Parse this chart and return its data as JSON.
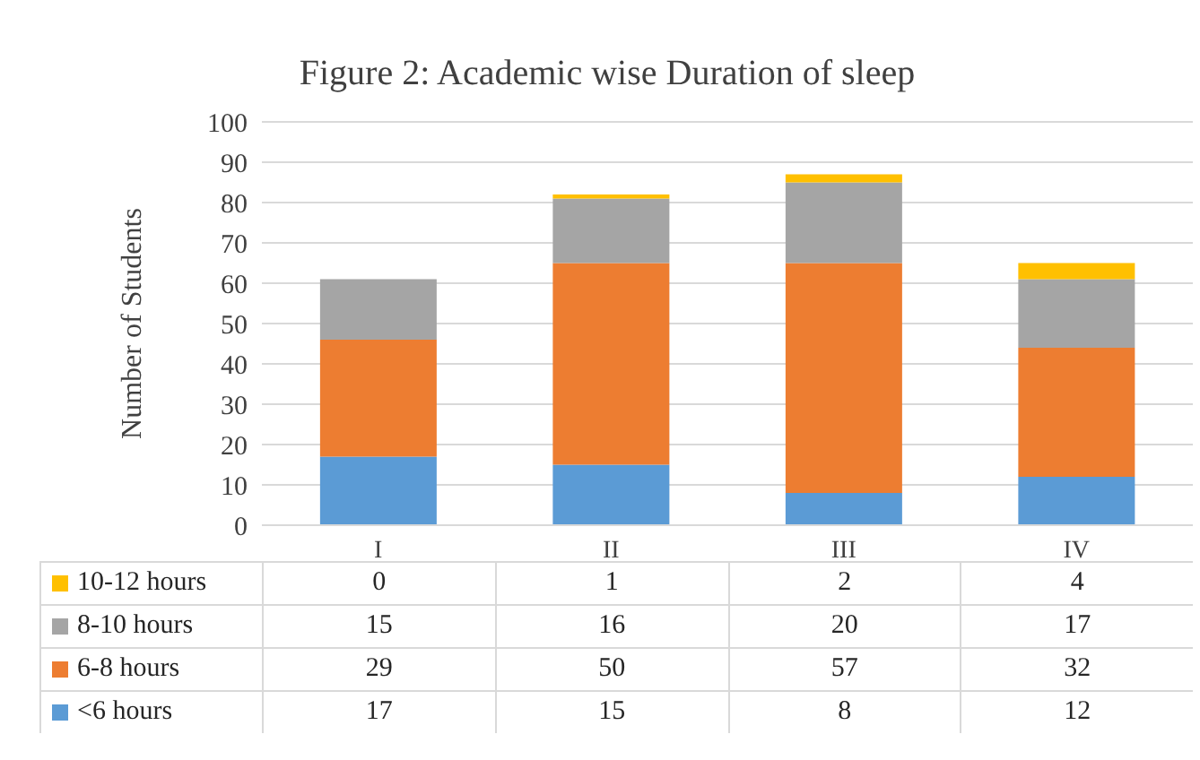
{
  "chart_data": {
    "type": "bar",
    "title": "Figure 2: Academic wise Duration of sleep",
    "ylabel": "Number of Students",
    "categories": [
      "I",
      "II",
      "III",
      "IV"
    ],
    "stacked": true,
    "series": [
      {
        "name": "<6 hours",
        "color": "#5b9bd5",
        "values": [
          17,
          15,
          8,
          12
        ]
      },
      {
        "name": "6-8 hours",
        "color": "#ed7d31",
        "values": [
          29,
          50,
          57,
          32
        ]
      },
      {
        "name": "8-10 hours",
        "color": "#a5a5a5",
        "values": [
          15,
          16,
          20,
          17
        ]
      },
      {
        "name": "10-12 hours",
        "color": "#ffc000",
        "values": [
          0,
          1,
          2,
          4
        ]
      }
    ],
    "ylim": [
      0,
      100
    ],
    "yticks": [
      0,
      10,
      20,
      30,
      40,
      50,
      60,
      70,
      80,
      90,
      100
    ],
    "grid": "y",
    "legend": "bottom",
    "data_labels": true
  }
}
